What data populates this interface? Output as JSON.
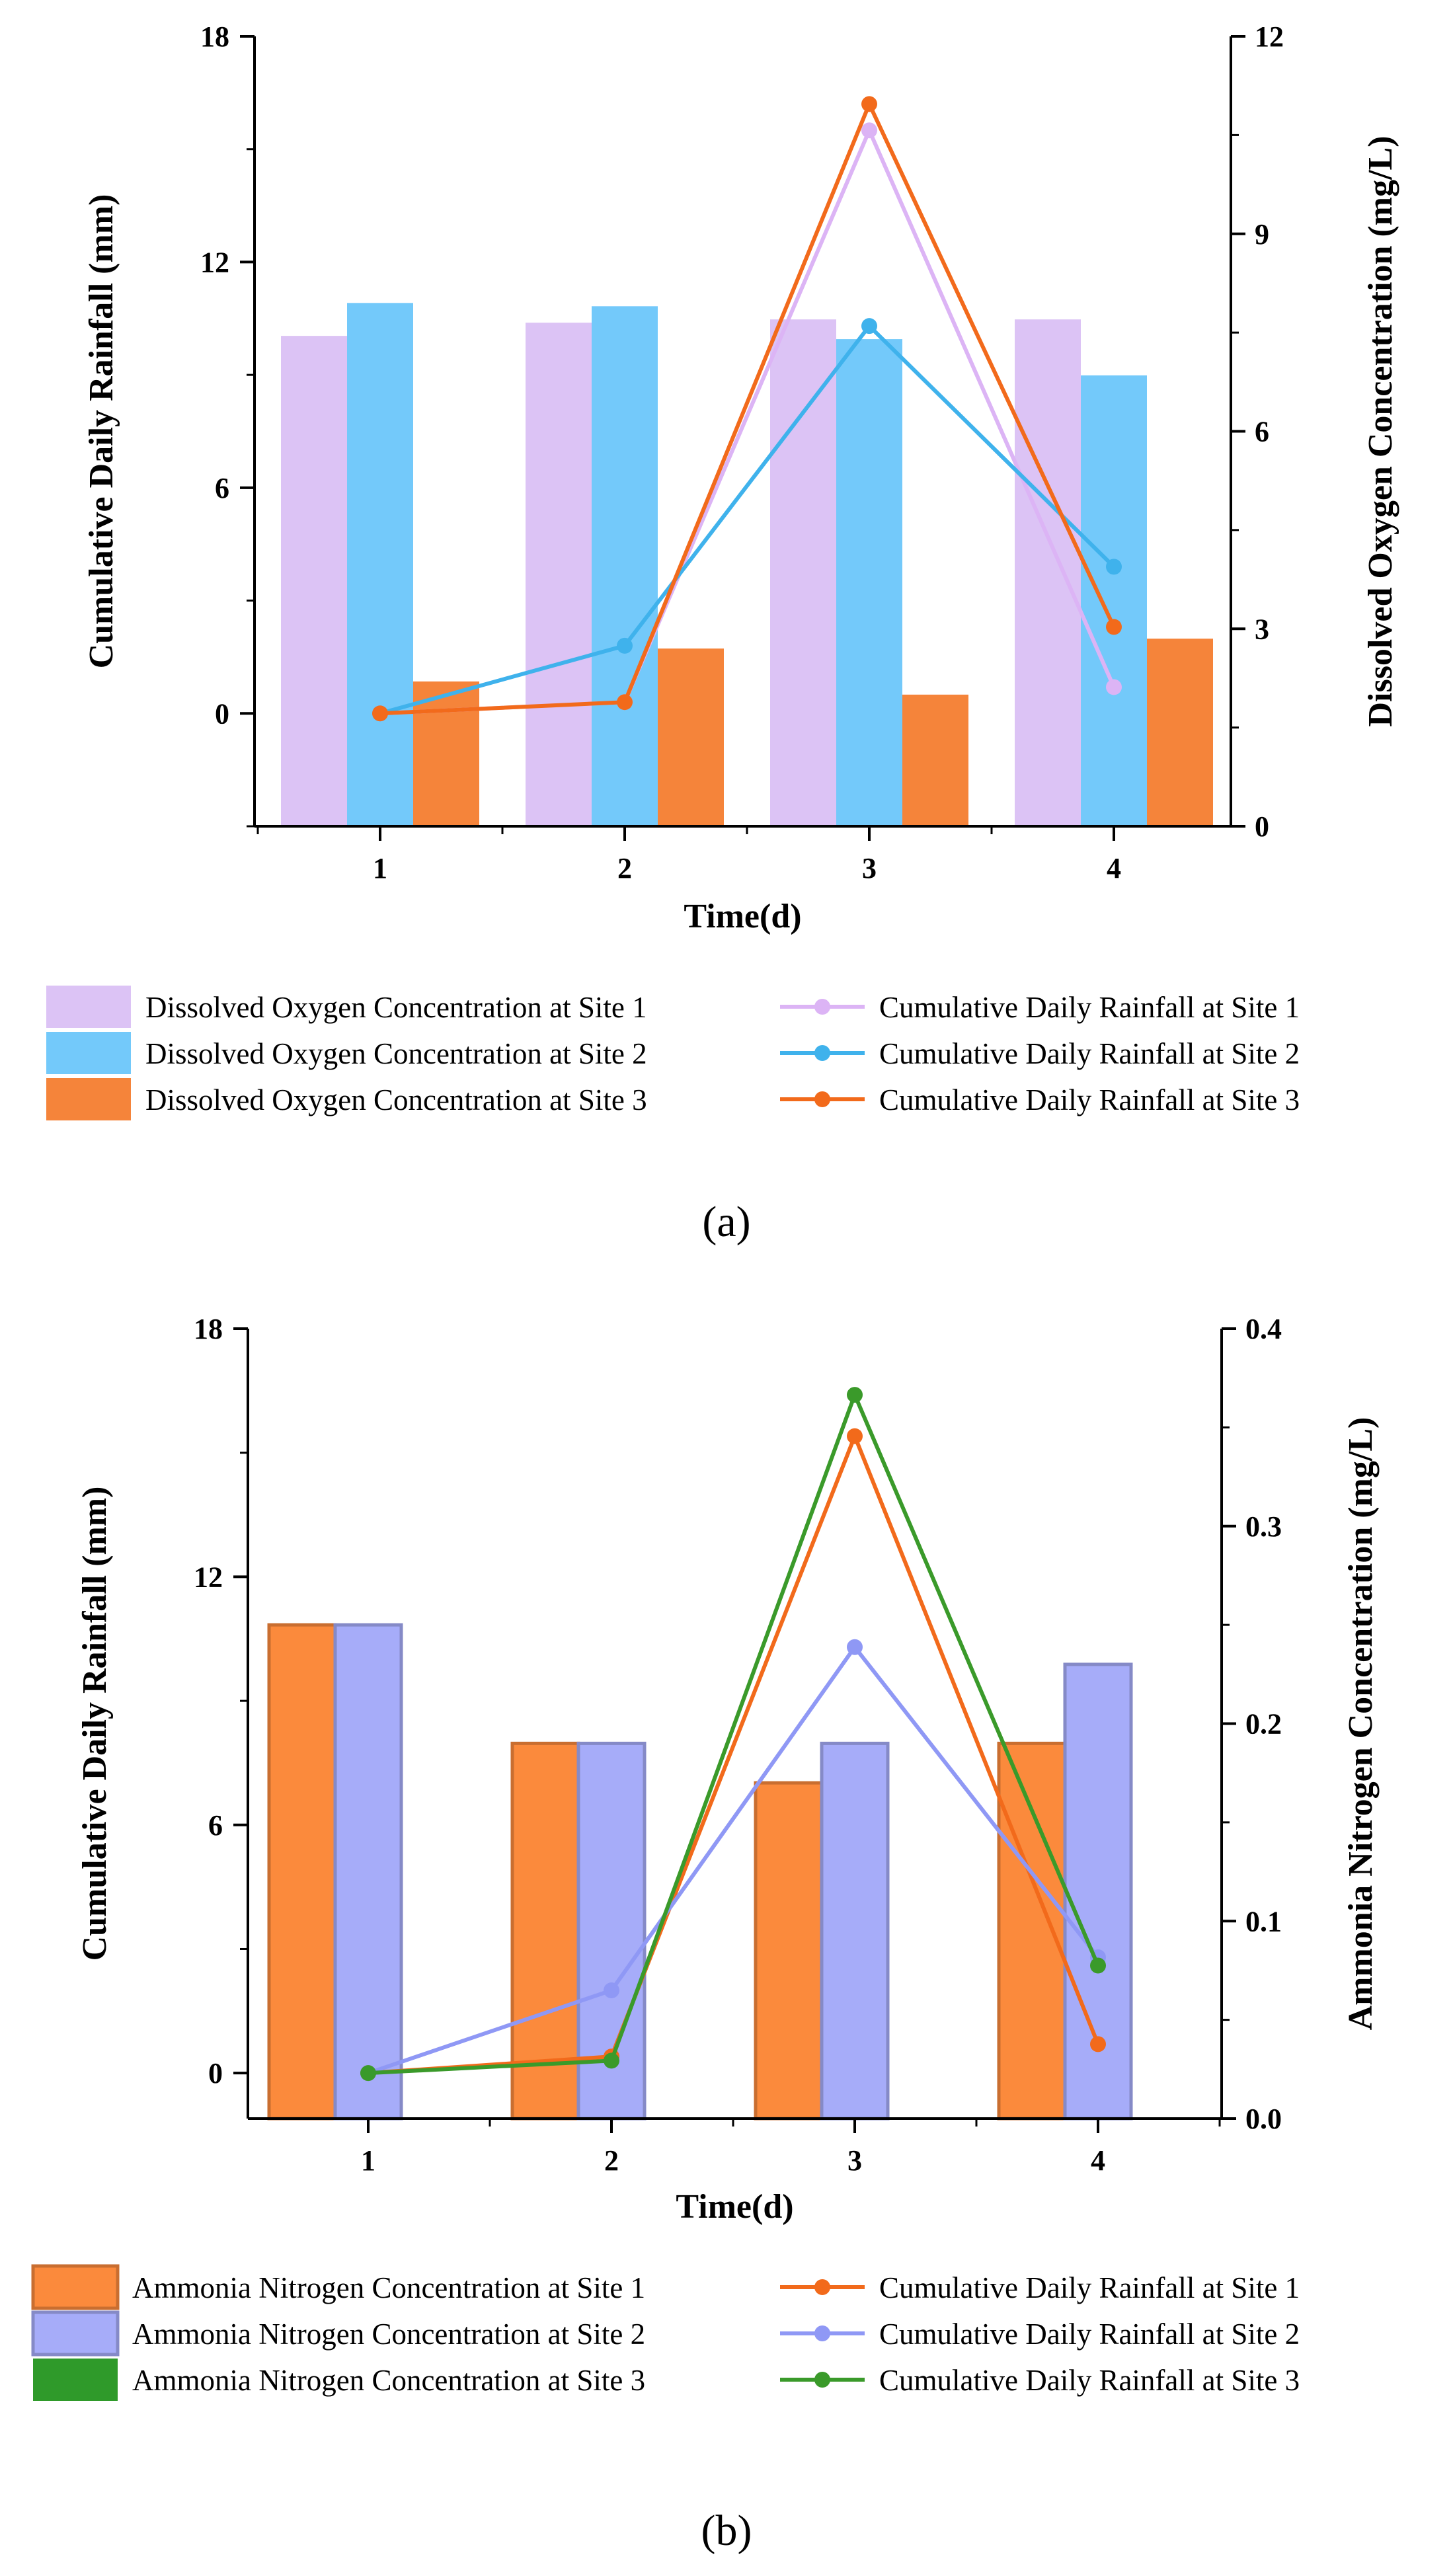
{
  "chart_data": [
    {
      "type": "bar",
      "panel_label": "(a)",
      "xlabel": "Time(d)",
      "ylabel": "Cumulative Daily Rainfall (mm)",
      "y2label": "Dissolved Oxygen Concentration (mg/L)",
      "categories": [
        "1",
        "2",
        "3",
        "4"
      ],
      "ylim": [
        -3,
        18
      ],
      "yticks": [
        0,
        6,
        12,
        18
      ],
      "y2lim": [
        0,
        12
      ],
      "y2ticks": [
        0,
        3,
        6,
        9,
        12
      ],
      "bar_series": [
        {
          "name": "Dissolved Oxygen Concentration at Site 1",
          "axis": "right",
          "color": "#dcc3f5",
          "values": [
            7.45,
            7.65,
            7.7,
            7.7
          ]
        },
        {
          "name": "Dissolved Oxygen Concentration at Site 2",
          "axis": "right",
          "color": "#73c9fa",
          "values": [
            7.95,
            7.9,
            7.4,
            6.85
          ]
        },
        {
          "name": "Dissolved Oxygen Concentration at Site 3",
          "axis": "right",
          "color": "#f5843a",
          "values": [
            2.2,
            2.7,
            2.0,
            2.85
          ]
        }
      ],
      "line_series": [
        {
          "name": "Cumulative Daily Rainfall at Site 1",
          "axis": "left",
          "color": "#dcb4f5",
          "values": [
            0,
            0.3,
            15.5,
            0.7
          ]
        },
        {
          "name": "Cumulative Daily Rainfall at Site 2",
          "axis": "left",
          "color": "#3fb2ec",
          "values": [
            0,
            1.8,
            10.3,
            3.9
          ]
        },
        {
          "name": "Cumulative Daily Rainfall at Site 3",
          "axis": "left",
          "color": "#f26a1b",
          "values": [
            0,
            0.3,
            16.2,
            2.3
          ]
        }
      ]
    },
    {
      "type": "bar",
      "panel_label": "(b)",
      "xlabel": "Time(d)",
      "ylabel": "Cumulative Daily Rainfall (mm)",
      "y2label": "Ammonia Nitrogen Concentration (mg/L)",
      "categories": [
        "1",
        "2",
        "3",
        "4"
      ],
      "ylim": [
        -1.1,
        18
      ],
      "yticks": [
        0,
        6,
        12,
        18
      ],
      "y2lim": [
        0,
        0.4
      ],
      "y2ticks": [
        0.0,
        0.1,
        0.2,
        0.3,
        0.4
      ],
      "bar_series": [
        {
          "name": "Ammonia Nitrogen Concentration at Site 1",
          "axis": "right",
          "color": "#fb8a3c",
          "values": [
            0.25,
            0.19,
            0.17,
            0.19
          ]
        },
        {
          "name": "Ammonia Nitrogen Concentration at Site 2",
          "axis": "right",
          "color": "#a6acf9",
          "values": [
            0.25,
            0.19,
            0.19,
            0.23
          ]
        },
        {
          "name": "Ammonia Nitrogen Concentration at Site 3",
          "axis": "right",
          "color": "#2f9a2a",
          "values": [
            0,
            0,
            0,
            0
          ]
        }
      ],
      "line_series": [
        {
          "name": "Cumulative Daily Rainfall at Site 1",
          "axis": "left",
          "color": "#f26a1b",
          "values": [
            0,
            0.4,
            15.4,
            0.7
          ]
        },
        {
          "name": "Cumulative Daily Rainfall at Site 2",
          "axis": "left",
          "color": "#8f98f5",
          "values": [
            0,
            2.0,
            10.3,
            2.8
          ]
        },
        {
          "name": "Cumulative Daily Rainfall at Site 3",
          "axis": "left",
          "color": "#3a9a2a",
          "values": [
            0,
            0.3,
            16.4,
            2.6
          ]
        }
      ]
    }
  ]
}
